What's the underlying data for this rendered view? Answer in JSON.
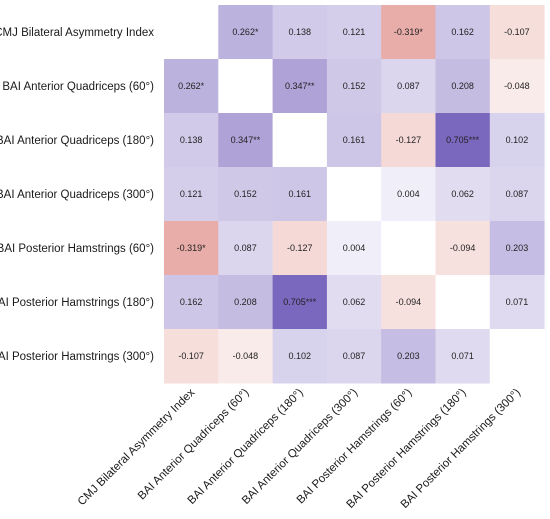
{
  "chart_data": {
    "type": "heatmap",
    "title": "",
    "labels": [
      "CMJ Bilateral Asymmetry Index",
      "BAI Anterior Quadriceps (60°)",
      "BAI Anterior Quadriceps (180°)",
      "BAI Anterior Quadriceps (300°)",
      "BAI Posterior Hamstrings (60°)",
      "BAI Posterior Hamstrings (180°)",
      "BAI Posterior Hamstrings (300°)"
    ],
    "values": [
      [
        null,
        0.262,
        0.138,
        0.121,
        -0.319,
        0.162,
        -0.107
      ],
      [
        0.262,
        null,
        0.347,
        0.152,
        0.087,
        0.208,
        -0.048
      ],
      [
        0.138,
        0.347,
        null,
        0.161,
        -0.127,
        0.705,
        0.102
      ],
      [
        0.121,
        0.152,
        0.161,
        null,
        0.004,
        0.062,
        0.087
      ],
      [
        -0.319,
        0.087,
        -0.127,
        0.004,
        null,
        -0.094,
        0.203
      ],
      [
        0.162,
        0.208,
        0.705,
        0.062,
        -0.094,
        null,
        0.071
      ],
      [
        -0.107,
        -0.048,
        0.102,
        0.087,
        0.203,
        0.071,
        null
      ]
    ],
    "cell_labels": [
      [
        "",
        "0.262*",
        "0.138",
        "0.121",
        "-0.319*",
        "0.162",
        "-0.107"
      ],
      [
        "0.262*",
        "",
        "0.347**",
        "0.152",
        "0.087",
        "0.208",
        "-0.048"
      ],
      [
        "0.138",
        "0.347**",
        "",
        "0.161",
        "-0.127",
        "0.705***",
        "0.102"
      ],
      [
        "0.121",
        "0.152",
        "0.161",
        "",
        "0.004",
        "0.062",
        "0.087"
      ],
      [
        "-0.319*",
        "0.087",
        "-0.127",
        "0.004",
        "",
        "-0.094",
        "0.203"
      ],
      [
        "0.162",
        "0.208",
        "0.705***",
        "0.062",
        "-0.094",
        "",
        "0.071"
      ],
      [
        "-0.107",
        "-0.048",
        "0.102",
        "0.087",
        "0.203",
        "0.071",
        ""
      ]
    ],
    "color_scale": {
      "positive": "#7a67be",
      "negative": "#e6a59f",
      "neutral": "#ffffff",
      "max_abs": 0.705
    },
    "diagonal_blank": true,
    "legend": "none",
    "grid": false
  }
}
